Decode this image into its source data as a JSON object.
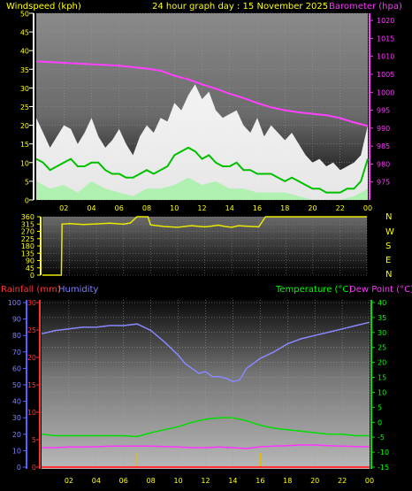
{
  "header": {
    "windspeed": "Windspeed (kph)",
    "date": "24 hour graph day : 15 November 2025",
    "barometer": "Barometer (hpa)"
  },
  "lower_header": {
    "rainfall": "Rainfall (mm)",
    "humidity": "Humidity",
    "temperature": "Temperature (°C)",
    "dewpoint": "Dew Point (°C)"
  },
  "compass_letters": [
    "N",
    "W",
    "S",
    "E",
    "N"
  ],
  "colors": {
    "gust": "#ffffff",
    "wind_avg": "#00c000",
    "wind_fill": "#b0f0b0",
    "barometer": "#ff40ff",
    "direction": "#e8e800",
    "humidity": "#8888ff",
    "temperature": "#00dd00",
    "dewpoint": "#ff33ff",
    "rainfall": "#ff3333",
    "text_yellow": "#ffff00",
    "text_magenta": "#ff33ff",
    "text_green": "#00ff00",
    "text_blue": "#8080ff",
    "text_red": "#ff3333"
  },
  "chart_data": [
    {
      "name": "wind-barometer",
      "type": "line",
      "x_ticks": [
        "02",
        "04",
        "06",
        "08",
        "10",
        "12",
        "14",
        "16",
        "18",
        "20",
        "22",
        "00"
      ],
      "xlim": [
        0,
        24
      ],
      "ylim_left": [
        0,
        50
      ],
      "y_ticks_left": [
        0,
        5,
        10,
        15,
        20,
        25,
        30,
        35,
        40,
        45,
        50
      ],
      "ylim_right": [
        970,
        1022
      ],
      "y_ticks_right": [
        975,
        980,
        985,
        990,
        995,
        1000,
        1005,
        1010,
        1015,
        1020
      ],
      "gust": {
        "x": [
          0,
          0.5,
          1,
          1.5,
          2,
          2.5,
          3,
          3.5,
          4,
          4.5,
          5,
          5.5,
          6,
          6.5,
          7,
          7.5,
          8,
          8.5,
          9,
          9.5,
          10,
          10.5,
          11,
          11.5,
          12,
          12.5,
          13,
          13.5,
          14,
          14.5,
          15,
          15.5,
          16,
          16.5,
          17,
          17.5,
          18,
          18.5,
          19,
          19.5,
          20,
          20.5,
          21,
          21.5,
          22,
          22.5,
          23,
          23.5,
          24
        ],
        "values": [
          22,
          18,
          14,
          17,
          20,
          19,
          15,
          18,
          22,
          17,
          14,
          16,
          19,
          15,
          12,
          17,
          20,
          18,
          22,
          21,
          26,
          24,
          28,
          31,
          27,
          29,
          24,
          22,
          23,
          24,
          20,
          18,
          22,
          17,
          20,
          18,
          16,
          18,
          15,
          12,
          10,
          11,
          9,
          10,
          8,
          9,
          10,
          12,
          20
        ]
      },
      "avg": {
        "x": [
          0,
          0.5,
          1,
          1.5,
          2,
          2.5,
          3,
          3.5,
          4,
          4.5,
          5,
          5.5,
          6,
          6.5,
          7,
          7.5,
          8,
          8.5,
          9,
          9.5,
          10,
          10.5,
          11,
          11.5,
          12,
          12.5,
          13,
          13.5,
          14,
          14.5,
          15,
          15.5,
          16,
          16.5,
          17,
          17.5,
          18,
          18.5,
          19,
          19.5,
          20,
          20.5,
          21,
          21.5,
          22,
          22.5,
          23,
          23.5,
          24
        ],
        "values": [
          11,
          10,
          8,
          9,
          10,
          11,
          9,
          9,
          10,
          10,
          8,
          7,
          7,
          6,
          6,
          7,
          8,
          7,
          8,
          9,
          12,
          13,
          14,
          13,
          11,
          12,
          10,
          9,
          9,
          10,
          8,
          8,
          7,
          7,
          7,
          6,
          5,
          6,
          5,
          4,
          3,
          3,
          2,
          2,
          2,
          3,
          3,
          5,
          11
        ]
      },
      "lull": {
        "x": [
          0,
          1,
          2,
          3,
          4,
          5,
          6,
          7,
          8,
          9,
          10,
          11,
          12,
          13,
          14,
          15,
          16,
          17,
          18,
          19,
          20,
          21,
          22,
          23,
          24
        ],
        "values": [
          5,
          3,
          4,
          2,
          5,
          3,
          2,
          1,
          3,
          3,
          4,
          6,
          4,
          5,
          3,
          3,
          2,
          2,
          2,
          1,
          0,
          0,
          0,
          1,
          3
        ]
      },
      "barometer": {
        "x": [
          0,
          2,
          4,
          6,
          8,
          9,
          10,
          11,
          12,
          13,
          14,
          15,
          16,
          17,
          18,
          19,
          20,
          21,
          22,
          23,
          24
        ],
        "values": [
          1008.6,
          1008.2,
          1007.8,
          1007.4,
          1006.6,
          1006,
          1004.6,
          1003.6,
          1002.2,
          1001,
          999.6,
          998.4,
          997,
          995.8,
          995,
          994.4,
          994,
          993.6,
          992.8,
          991.6,
          990.6
        ]
      }
    },
    {
      "name": "wind-direction",
      "type": "line",
      "xlim": [
        0,
        24
      ],
      "ylim": [
        0,
        360
      ],
      "y_ticks": [
        0,
        45,
        90,
        135,
        180,
        225,
        270,
        315,
        360
      ],
      "direction": {
        "x": [
          0,
          1.4,
          1.45,
          2,
          3,
          4,
          5,
          6,
          6.5,
          7,
          7.5,
          7.8,
          8,
          9,
          10,
          11,
          12,
          12.5,
          13,
          13.5,
          14,
          14.5,
          15,
          15.5,
          16,
          16.5,
          17,
          18,
          19,
          20,
          21,
          22,
          23,
          24
        ],
        "values": [
          0,
          0,
          315,
          318,
          312,
          316,
          320,
          314,
          322,
          360,
          360,
          360,
          310,
          300,
          295,
          305,
          298,
          302,
          308,
          300,
          295,
          305,
          302,
          300,
          298,
          360,
          360,
          360,
          360,
          360,
          360,
          360,
          360,
          360
        ]
      }
    },
    {
      "name": "temperature-humidity",
      "type": "line",
      "x_ticks": [
        "02",
        "04",
        "06",
        "08",
        "10",
        "12",
        "14",
        "16",
        "18",
        "20",
        "22",
        "00"
      ],
      "xlim": [
        0,
        24
      ],
      "ylim_humidity": [
        0,
        100
      ],
      "y_ticks_humidity": [
        0,
        10,
        20,
        30,
        40,
        50,
        60,
        70,
        80,
        90,
        100
      ],
      "ylim_rain": [
        0,
        30
      ],
      "y_ticks_rain": [
        0,
        5,
        10,
        15,
        20,
        25,
        30
      ],
      "ylim_temp": [
        -15,
        40
      ],
      "y_ticks_temp": [
        -15,
        -10,
        -5,
        0,
        5,
        10,
        15,
        20,
        25,
        30,
        35,
        40
      ],
      "humidity": {
        "x": [
          0,
          1,
          2,
          3,
          4,
          5,
          6,
          7,
          8,
          9,
          10,
          10.5,
          11,
          11.5,
          12,
          12.5,
          13,
          13.5,
          14,
          14.5,
          15,
          16,
          17,
          18,
          19,
          20,
          21,
          22,
          23,
          24
        ],
        "values": [
          81,
          83,
          84,
          85,
          85,
          86,
          86,
          87,
          83,
          76,
          68,
          63,
          60,
          57,
          58,
          55,
          55,
          54,
          52,
          53,
          60,
          66,
          70,
          75,
          78,
          80,
          82,
          84,
          86,
          88
        ]
      },
      "temperature": {
        "x": [
          0,
          1,
          2,
          3,
          4,
          5,
          6,
          7,
          8,
          9,
          10,
          11,
          12,
          13,
          14,
          15,
          16,
          17,
          18,
          19,
          20,
          21,
          22,
          23,
          24
        ],
        "values": [
          -4,
          -4.5,
          -4.5,
          -4.5,
          -4.5,
          -4.5,
          -4.5,
          -4.8,
          -3.5,
          -2.5,
          -1.5,
          0,
          1,
          1.5,
          1.5,
          0.5,
          -1,
          -2,
          -2.5,
          -3,
          -3.5,
          -4,
          -4,
          -4.5,
          -4.5
        ]
      },
      "dewpoint": {
        "x": [
          0,
          1,
          2,
          3,
          4,
          5,
          6,
          7,
          8,
          9,
          10,
          11,
          12,
          13,
          14,
          15,
          16,
          17,
          18,
          19,
          20,
          21,
          22,
          23,
          24
        ],
        "values": [
          -8.5,
          -8.5,
          -8.3,
          -8.3,
          -8.2,
          -8,
          -8,
          -8,
          -8,
          -8.1,
          -8.3,
          -8.5,
          -8.5,
          -8.3,
          -8.5,
          -8.8,
          -8.2,
          -8,
          -7.8,
          -7.6,
          -7.6,
          -7.8,
          -8,
          -8.1,
          -8.2
        ]
      },
      "rainfall": {
        "x": [
          0,
          24
        ],
        "values": [
          0,
          0
        ]
      },
      "rain_markers": [
        7,
        16
      ]
    }
  ]
}
